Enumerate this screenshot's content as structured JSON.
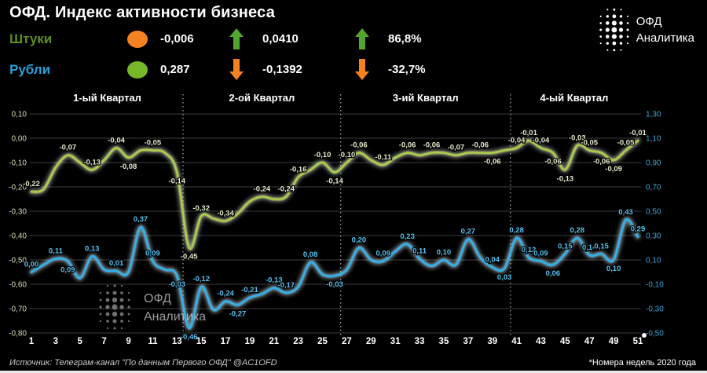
{
  "header": {
    "title": "ОФД. Индекс активности бизнеса",
    "rows": [
      {
        "label": "Штуки",
        "label_color": "#5E8E23",
        "indicators": [
          {
            "type": "dot",
            "color": "#F58220",
            "value": "-0,006"
          },
          {
            "type": "arrow-up",
            "color": "#52A52E",
            "value": "0,0410"
          },
          {
            "type": "arrow-up",
            "color": "#52A52E",
            "value": "86,8%"
          }
        ]
      },
      {
        "label": "Рубли",
        "label_color": "#2C9FD9",
        "indicators": [
          {
            "type": "dot",
            "color": "#76B82A",
            "value": "0,287"
          },
          {
            "type": "arrow-down",
            "color": "#F58220",
            "value": "-0,1392"
          },
          {
            "type": "arrow-down",
            "color": "#F58220",
            "value": "-32,7%"
          }
        ]
      }
    ]
  },
  "logo": {
    "line1": "ОФД",
    "line2": "Аналитика"
  },
  "watermark": {
    "line1": "ОФД",
    "line2": "Аналитика"
  },
  "footer": {
    "source": "Источник: Телеграм-канал \"По данным Первого ОФД\" @AC1OFD",
    "note": "*Номера недель 2020 года"
  },
  "chart_data": {
    "type": "line",
    "x_unit": "week number of 2020",
    "x_range": [
      1,
      51
    ],
    "x_ticks": [
      1,
      3,
      5,
      7,
      9,
      11,
      13,
      15,
      17,
      19,
      21,
      23,
      25,
      27,
      29,
      31,
      33,
      35,
      37,
      39,
      41,
      43,
      45,
      47,
      49,
      51
    ],
    "grid": true,
    "quarters": [
      {
        "label": "1-ый Квартал"
      },
      {
        "label": "2-ой Квартал"
      },
      {
        "label": "3-ий Квартал"
      },
      {
        "label": "4-ый Квартал"
      }
    ],
    "quarter_boundaries": [
      13.5,
      26.5,
      40.5
    ],
    "left_axis": {
      "max": 0.1,
      "min": -0.8,
      "color": "#D6DDB4",
      "ticks": [
        "0,10",
        "0,00",
        "-0,10",
        "-0,20",
        "-0,30",
        "-0,40",
        "-0,50",
        "-0,60",
        "-0,70",
        "-0,80"
      ]
    },
    "right_axis": {
      "max": 1.3,
      "min": -0.5,
      "color": "#3BA7DB",
      "ticks": [
        "1,30",
        "1,10",
        "0,90",
        "0,70",
        "0,50",
        "0,30",
        "0,10",
        "-0,10",
        "-0,30",
        "-0,50"
      ]
    },
    "series": [
      {
        "name": "Штуки",
        "axis": "left",
        "color": "#AECD4E",
        "label_color": "#E4EBCB",
        "values": [
          -0.22,
          -0.21,
          -0.12,
          -0.07,
          -0.1,
          -0.13,
          -0.09,
          -0.04,
          -0.08,
          -0.05,
          -0.05,
          -0.06,
          -0.14,
          -0.45,
          -0.32,
          -0.33,
          -0.34,
          -0.31,
          -0.26,
          -0.24,
          -0.25,
          -0.24,
          -0.16,
          -0.13,
          -0.1,
          -0.14,
          -0.1,
          -0.06,
          -0.09,
          -0.11,
          -0.08,
          -0.06,
          -0.07,
          -0.06,
          -0.06,
          -0.07,
          -0.06,
          -0.06,
          -0.06,
          -0.05,
          -0.04,
          -0.01,
          -0.04,
          -0.06,
          -0.13,
          -0.03,
          -0.05,
          -0.06,
          -0.09,
          -0.05,
          -0.01
        ],
        "labels": [
          [
            1,
            "-0,22",
            "a"
          ],
          [
            4,
            "-0,07",
            "a"
          ],
          [
            6,
            "-0,13",
            "a"
          ],
          [
            8,
            "-0,04",
            "a"
          ],
          [
            9,
            "-0,08",
            "b"
          ],
          [
            11,
            "-0,05",
            "a"
          ],
          [
            13,
            "-0,14",
            "b"
          ],
          [
            14,
            "-0,45",
            "b"
          ],
          [
            15,
            "-0,32",
            "a"
          ],
          [
            17,
            "-0,34",
            "a"
          ],
          [
            20,
            "-0,24",
            "a"
          ],
          [
            22,
            "-0,24",
            "a"
          ],
          [
            23,
            "-0,16",
            "a"
          ],
          [
            25,
            "-0,10",
            "a"
          ],
          [
            26,
            "-0,14",
            "b"
          ],
          [
            27,
            "-0,10",
            "a"
          ],
          [
            28,
            "-0,06",
            "a"
          ],
          [
            30,
            "-0,11",
            "a"
          ],
          [
            32,
            "-0,06",
            "a"
          ],
          [
            34,
            "-0,06",
            "a"
          ],
          [
            36,
            "-0,07",
            "a"
          ],
          [
            38,
            "-0,06",
            "a"
          ],
          [
            39,
            "-0,06",
            "b"
          ],
          [
            41,
            "-0,04",
            "a"
          ],
          [
            42,
            "-0,01",
            "a"
          ],
          [
            43,
            "-0,04",
            "a"
          ],
          [
            44,
            "-0,06",
            "b"
          ],
          [
            45,
            "-0,13",
            "b"
          ],
          [
            46,
            "-0,03",
            "a"
          ],
          [
            47,
            "-0,05",
            "a"
          ],
          [
            48,
            "-0,06",
            "b"
          ],
          [
            49,
            "-0,09",
            "b"
          ],
          [
            50,
            "-0,05",
            "a"
          ],
          [
            51,
            "-0,01",
            "a"
          ]
        ]
      },
      {
        "name": "Рубли",
        "axis": "right",
        "color": "#35B1EA",
        "label_color": "#56C2F0",
        "values": [
          0.0,
          0.06,
          0.11,
          0.09,
          -0.05,
          0.13,
          0.02,
          0.01,
          0.0,
          0.37,
          0.09,
          0.02,
          -0.03,
          -0.46,
          -0.12,
          -0.31,
          -0.24,
          -0.27,
          -0.21,
          -0.18,
          -0.13,
          -0.17,
          -0.12,
          0.08,
          -0.02,
          -0.03,
          0.02,
          0.2,
          0.1,
          0.09,
          0.17,
          0.23,
          0.11,
          0.05,
          0.1,
          0.06,
          0.27,
          0.12,
          0.04,
          0.03,
          0.28,
          0.12,
          0.09,
          0.06,
          0.15,
          0.28,
          0.14,
          0.15,
          0.1,
          0.43,
          0.29
        ],
        "labels": [
          [
            1,
            "0,00",
            "a"
          ],
          [
            3,
            "0,11",
            "a"
          ],
          [
            4,
            "0,09",
            "b"
          ],
          [
            6,
            "0,13",
            "a"
          ],
          [
            8,
            "0,01",
            "a"
          ],
          [
            10,
            "0,37",
            "a"
          ],
          [
            11,
            "0,09",
            "a"
          ],
          [
            13,
            "-0,03",
            "b"
          ],
          [
            14,
            "-0,46",
            "b"
          ],
          [
            15,
            "-0,12",
            "a"
          ],
          [
            17,
            "-0,24",
            "a"
          ],
          [
            18,
            "-0,27",
            "b"
          ],
          [
            19,
            "-0,21",
            "a"
          ],
          [
            21,
            "-0,13",
            "a"
          ],
          [
            22,
            "-0,17",
            "a"
          ],
          [
            24,
            "0,08",
            "a"
          ],
          [
            26,
            "-0,03",
            "b"
          ],
          [
            28,
            "0,20",
            "a"
          ],
          [
            30,
            "0,09",
            "a"
          ],
          [
            32,
            "0,23",
            "a"
          ],
          [
            33,
            "0,11",
            "a"
          ],
          [
            35,
            "0,10",
            "a"
          ],
          [
            37,
            "0,27",
            "a"
          ],
          [
            39,
            "0,04",
            "a"
          ],
          [
            40,
            "0,03",
            "b"
          ],
          [
            41,
            "0,28",
            "a"
          ],
          [
            42,
            "0,12",
            "a"
          ],
          [
            43,
            "0,09",
            "a"
          ],
          [
            44,
            "0,06",
            "b"
          ],
          [
            45,
            "0,15",
            "a"
          ],
          [
            46,
            "0,28",
            "a"
          ],
          [
            47,
            "0,14",
            "a"
          ],
          [
            48,
            "0,15",
            "a"
          ],
          [
            49,
            "0,10",
            "b"
          ],
          [
            50,
            "0,43",
            "a"
          ],
          [
            51,
            "0,29",
            "a"
          ]
        ]
      }
    ]
  }
}
